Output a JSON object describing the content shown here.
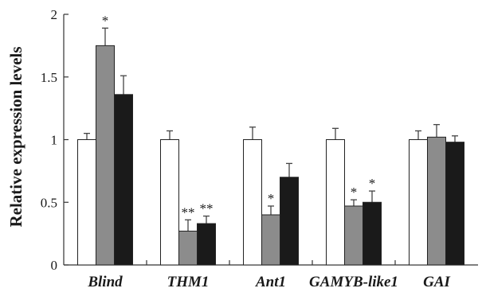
{
  "chart_data": {
    "type": "bar",
    "ylabel": "Relative expression levels",
    "ylim": [
      0,
      2
    ],
    "yticks": [
      "0",
      "0.5",
      "1",
      "1.5",
      "2"
    ],
    "ytick_values": [
      0,
      0.5,
      1,
      1.5,
      2
    ],
    "grid": false,
    "categories": [
      "Blind",
      "THM1",
      "Ant1",
      "GAMYB-like1",
      "GAI"
    ],
    "series": [
      {
        "fill": "#ffffff",
        "values": [
          1.0,
          1.0,
          1.0,
          1.0,
          1.0
        ],
        "errors": [
          0.05,
          0.07,
          0.1,
          0.09,
          0.07
        ],
        "significance": [
          "",
          "",
          "",
          "",
          ""
        ]
      },
      {
        "fill": "#8c8c8c",
        "values": [
          1.75,
          0.27,
          0.4,
          0.47,
          1.02
        ],
        "errors": [
          0.14,
          0.09,
          0.07,
          0.05,
          0.1
        ],
        "significance": [
          "*",
          "**",
          "*",
          "*",
          ""
        ]
      },
      {
        "fill": "#1a1a1a",
        "values": [
          1.36,
          0.33,
          0.7,
          0.5,
          0.98
        ],
        "errors": [
          0.15,
          0.06,
          0.11,
          0.09,
          0.05
        ],
        "significance": [
          "",
          "**",
          "",
          "*",
          ""
        ]
      }
    ]
  }
}
